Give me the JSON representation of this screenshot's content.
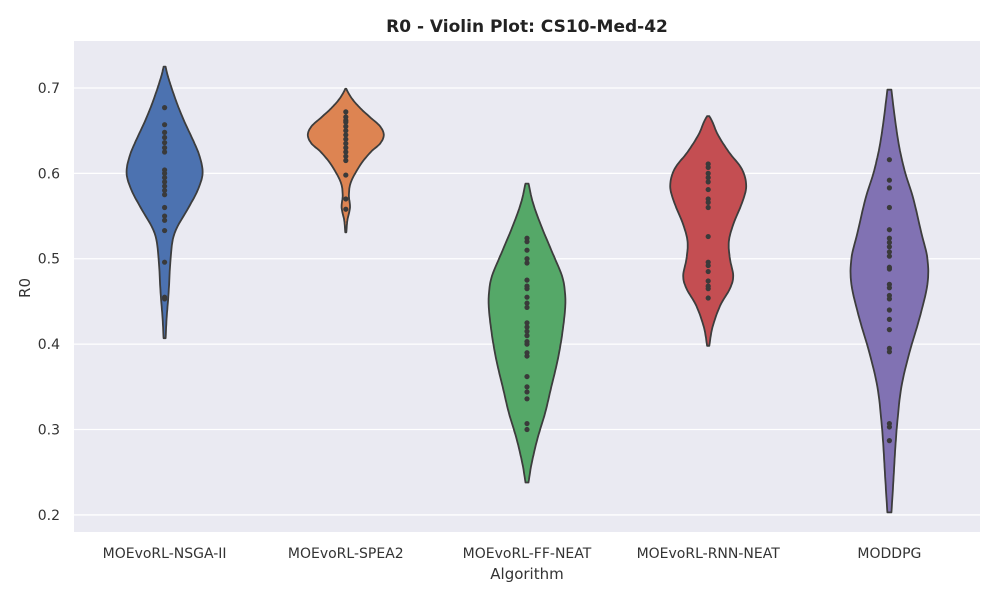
{
  "chart_data": {
    "type": "violin",
    "title": "R0 - Violin Plot: CS10-Med-42",
    "xlabel": "Algorithm",
    "ylabel": "R0",
    "ylim": [
      0.18,
      0.755
    ],
    "yticks": [
      0.2,
      0.3,
      0.4,
      0.5,
      0.6,
      0.7
    ],
    "ytick_labels": [
      "0.2",
      "0.3",
      "0.4",
      "0.5",
      "0.6",
      "0.7"
    ],
    "grid": true,
    "background": "#eaeaf2",
    "categories": [
      "MOEvoRL-NSGA-II",
      "MOEvoRL-SPEA2",
      "MOEvoRL-FF-NEAT",
      "MOEvoRL-RNN-NEAT",
      "MODDPG"
    ],
    "series": [
      {
        "color": "#4c72b0",
        "points": [
          0.677,
          0.657,
          0.648,
          0.642,
          0.636,
          0.63,
          0.625,
          0.604,
          0.6,
          0.595,
          0.59,
          0.585,
          0.58,
          0.575,
          0.56,
          0.55,
          0.545,
          0.533,
          0.496,
          0.455,
          0.453
        ]
      },
      {
        "color": "#dd8452",
        "points": [
          0.672,
          0.666,
          0.662,
          0.66,
          0.655,
          0.65,
          0.645,
          0.64,
          0.635,
          0.63,
          0.625,
          0.62,
          0.615,
          0.598,
          0.57,
          0.558
        ]
      },
      {
        "color": "#55a868",
        "points": [
          0.524,
          0.52,
          0.51,
          0.5,
          0.495,
          0.475,
          0.468,
          0.465,
          0.455,
          0.448,
          0.443,
          0.425,
          0.42,
          0.415,
          0.41,
          0.403,
          0.4,
          0.39,
          0.386,
          0.362,
          0.35,
          0.344,
          0.336,
          0.307,
          0.3
        ]
      },
      {
        "color": "#c44e52",
        "points": [
          0.611,
          0.607,
          0.6,
          0.595,
          0.59,
          0.581,
          0.57,
          0.566,
          0.56,
          0.526,
          0.496,
          0.492,
          0.485,
          0.474,
          0.468,
          0.465,
          0.454
        ]
      },
      {
        "color": "#8172b3",
        "points": [
          0.616,
          0.592,
          0.583,
          0.56,
          0.534,
          0.524,
          0.519,
          0.514,
          0.508,
          0.503,
          0.49,
          0.488,
          0.47,
          0.466,
          0.457,
          0.453,
          0.44,
          0.429,
          0.417,
          0.395,
          0.391,
          0.307,
          0.303,
          0.287
        ]
      }
    ],
    "violins": [
      {
        "min": 0.407,
        "max": 0.725,
        "profile": [
          [
            0.407,
            1
          ],
          [
            0.43,
            2
          ],
          [
            0.46,
            4
          ],
          [
            0.5,
            6
          ],
          [
            0.53,
            10
          ],
          [
            0.56,
            24
          ],
          [
            0.58,
            33
          ],
          [
            0.6,
            38
          ],
          [
            0.62,
            35
          ],
          [
            0.64,
            28
          ],
          [
            0.66,
            20
          ],
          [
            0.68,
            13
          ],
          [
            0.7,
            7
          ],
          [
            0.715,
            3
          ],
          [
            0.725,
            1
          ]
        ]
      },
      {
        "min": 0.531,
        "max": 0.699,
        "profile": [
          [
            0.531,
            1
          ],
          [
            0.545,
            3
          ],
          [
            0.56,
            8
          ],
          [
            0.575,
            6
          ],
          [
            0.59,
            10
          ],
          [
            0.61,
            28
          ],
          [
            0.625,
            48
          ],
          [
            0.635,
            66
          ],
          [
            0.645,
            73
          ],
          [
            0.655,
            66
          ],
          [
            0.665,
            48
          ],
          [
            0.675,
            30
          ],
          [
            0.685,
            15
          ],
          [
            0.693,
            6
          ],
          [
            0.699,
            1
          ]
        ]
      },
      {
        "min": 0.238,
        "max": 0.588,
        "profile": [
          [
            0.238,
            1
          ],
          [
            0.26,
            3
          ],
          [
            0.29,
            7
          ],
          [
            0.32,
            12
          ],
          [
            0.35,
            16
          ],
          [
            0.38,
            20
          ],
          [
            0.41,
            23
          ],
          [
            0.44,
            25
          ],
          [
            0.46,
            25
          ],
          [
            0.48,
            23
          ],
          [
            0.51,
            16
          ],
          [
            0.54,
            9
          ],
          [
            0.565,
            4
          ],
          [
            0.588,
            1
          ]
        ]
      },
      {
        "min": 0.398,
        "max": 0.667,
        "profile": [
          [
            0.398,
            1
          ],
          [
            0.42,
            4
          ],
          [
            0.445,
            11
          ],
          [
            0.465,
            20
          ],
          [
            0.48,
            23
          ],
          [
            0.5,
            20
          ],
          [
            0.52,
            19
          ],
          [
            0.54,
            23
          ],
          [
            0.565,
            31
          ],
          [
            0.585,
            35
          ],
          [
            0.605,
            31
          ],
          [
            0.625,
            19
          ],
          [
            0.645,
            9
          ],
          [
            0.66,
            4
          ],
          [
            0.667,
            1
          ]
        ]
      },
      {
        "min": 0.203,
        "max": 0.698,
        "profile": [
          [
            0.203,
            1
          ],
          [
            0.24,
            2
          ],
          [
            0.28,
            3
          ],
          [
            0.31,
            4
          ],
          [
            0.35,
            6
          ],
          [
            0.39,
            10
          ],
          [
            0.43,
            15
          ],
          [
            0.47,
            19
          ],
          [
            0.5,
            19
          ],
          [
            0.53,
            16
          ],
          [
            0.57,
            12
          ],
          [
            0.6,
            8
          ],
          [
            0.63,
            5
          ],
          [
            0.66,
            3
          ],
          [
            0.698,
            1
          ]
        ]
      }
    ]
  }
}
